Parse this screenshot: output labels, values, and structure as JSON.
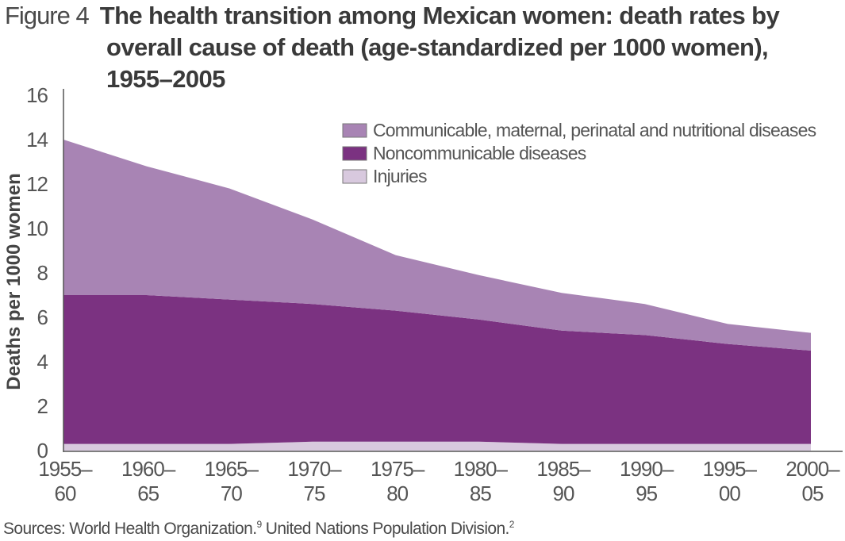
{
  "figure": {
    "label": "Figure 4",
    "title_line1": "The health transition among Mexican women: death rates by",
    "title_line2": "overall cause of death (age-standardized per 1000 women),",
    "title_line3": "1955–2005"
  },
  "source": {
    "text": "Sources: World Health Organization.",
    "ref1": "9",
    "text2": " United Nations Population Division.",
    "ref2": "2"
  },
  "colors": {
    "communicable": "#a884b4",
    "noncommunicable": "#7b3281",
    "injuries": "#d8c9de",
    "axis": "#555555"
  },
  "chart_data": {
    "type": "area",
    "stacked": true,
    "title": "The health transition among Mexican women: death rates by overall cause of death (age-standardized per 1000 women), 1955–2005",
    "xlabel": "",
    "ylabel": "Deaths per 1000 women",
    "ylim": [
      0,
      16
    ],
    "yticks": [
      "0",
      "2",
      "4",
      "6",
      "8",
      "10",
      "12",
      "14",
      "16"
    ],
    "categories": [
      [
        "1955–",
        "60"
      ],
      [
        "1960–",
        "65"
      ],
      [
        "1965–",
        "70"
      ],
      [
        "1970–",
        "75"
      ],
      [
        "1975–",
        "80"
      ],
      [
        "1980–",
        "85"
      ],
      [
        "1985–",
        "90"
      ],
      [
        "1990–",
        "95"
      ],
      [
        "1995–",
        "00"
      ],
      [
        "2000–",
        "05"
      ]
    ],
    "series": [
      {
        "name": "Injuries",
        "color_key": "injuries",
        "values": [
          0.3,
          0.3,
          0.3,
          0.4,
          0.4,
          0.4,
          0.3,
          0.3,
          0.3,
          0.3
        ]
      },
      {
        "name": "Noncommunicable diseases",
        "color_key": "noncommunicable",
        "values": [
          6.7,
          6.7,
          6.5,
          6.2,
          5.9,
          5.5,
          5.1,
          4.9,
          4.5,
          4.2
        ]
      },
      {
        "name": "Communicable, maternal, perinatal and nutritional diseases",
        "color_key": "communicable",
        "values": [
          7.0,
          5.8,
          5.0,
          3.8,
          2.5,
          2.0,
          1.7,
          1.4,
          0.9,
          0.8
        ]
      }
    ],
    "legend_order": [
      2,
      1,
      0
    ],
    "legend_position": "top-right",
    "grid": false
  }
}
